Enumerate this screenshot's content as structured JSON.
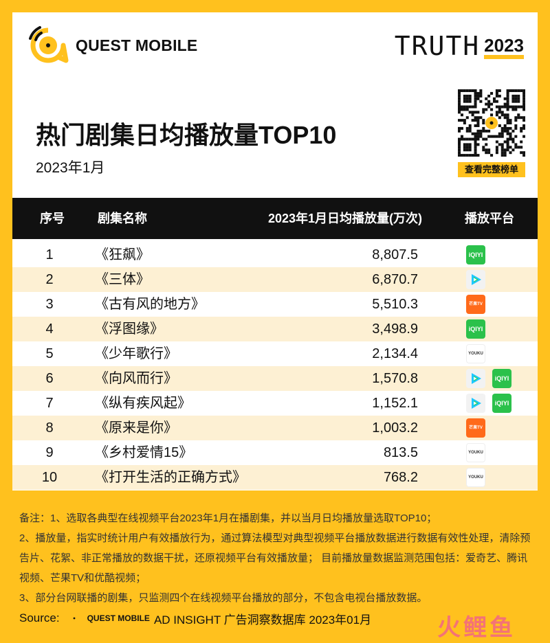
{
  "brand": {
    "logo_text": "QUEST MOBILE",
    "truth_word": "TRUTH",
    "truth_year": "2023",
    "accent_color": "#ffc11e"
  },
  "header": {
    "title": "热门剧集日均播放量TOP10",
    "subtitle": "2023年1月",
    "qr_caption": "查看完整榜单"
  },
  "table": {
    "columns": [
      "序号",
      "剧集名称",
      "2023年1月日均播放量(万次)",
      "播放平台"
    ]
  },
  "chart_data": {
    "type": "table",
    "title": "热门剧集日均播放量TOP10",
    "subtitle": "2023年1月",
    "columns": [
      "序号",
      "剧集名称",
      "2023年1月日均播放量(万次)",
      "播放平台"
    ],
    "rows": [
      {
        "rank": "1",
        "name": "《狂飙》",
        "value": "8,807.5",
        "platforms": [
          "iqiyi-icon"
        ]
      },
      {
        "rank": "2",
        "name": "《三体》",
        "value": "6,870.7",
        "platforms": [
          "tencent-video-icon"
        ]
      },
      {
        "rank": "3",
        "name": "《古有风的地方》",
        "value": "5,510.3",
        "platforms": [
          "mango-tv-icon"
        ]
      },
      {
        "rank": "4",
        "name": "《浮图缘》",
        "value": "3,498.9",
        "platforms": [
          "iqiyi-icon"
        ]
      },
      {
        "rank": "5",
        "name": "《少年歌行》",
        "value": "2,134.4",
        "platforms": [
          "youku-icon"
        ]
      },
      {
        "rank": "6",
        "name": "《向风而行》",
        "value": "1,570.8",
        "platforms": [
          "tencent-video-icon",
          "iqiyi-icon"
        ]
      },
      {
        "rank": "7",
        "name": "《纵有疾风起》",
        "value": "1,152.1",
        "platforms": [
          "tencent-video-icon",
          "iqiyi-icon"
        ]
      },
      {
        "rank": "8",
        "name": "《原来是你》",
        "value": "1,003.2",
        "platforms": [
          "mango-tv-icon"
        ]
      },
      {
        "rank": "9",
        "name": "《乡村爱情15》",
        "value": "813.5",
        "platforms": [
          "youku-icon"
        ]
      },
      {
        "rank": "10",
        "name": "《打开生活的正确方式》",
        "value": "768.2",
        "platforms": [
          "youku-icon"
        ]
      }
    ]
  },
  "platform_icons": {
    "iqiyi_text": "iQIYI",
    "mango_text": "芒果TV",
    "youku_text": "YOUKU"
  },
  "notes": [
    "备注：1、选取各典型在线视频平台2023年1月在播剧集，并以当月日均播放量选取TOP10；",
    "2、播放量，指实时统计用户有效播放行为，通过算法模型对典型视频平台播放数据进行数据有效性处理，清除预告片、花絮、非正常播放的数据干扰，还原视频平台有效播放量； 目前播放量数据监测范围包括：爱奇艺、腾讯视频、芒果TV和优酷视频；",
    "3、部分台网联播的剧集，只监测四个在线视频平台播放的部分，不包含电视台播放数据。"
  ],
  "source": {
    "label": "Source:",
    "logo_text": "QUEST MOBILE",
    "text": "AD INSIGHT 广告洞察数据库 2023年01月"
  },
  "watermark": "火鲤鱼"
}
